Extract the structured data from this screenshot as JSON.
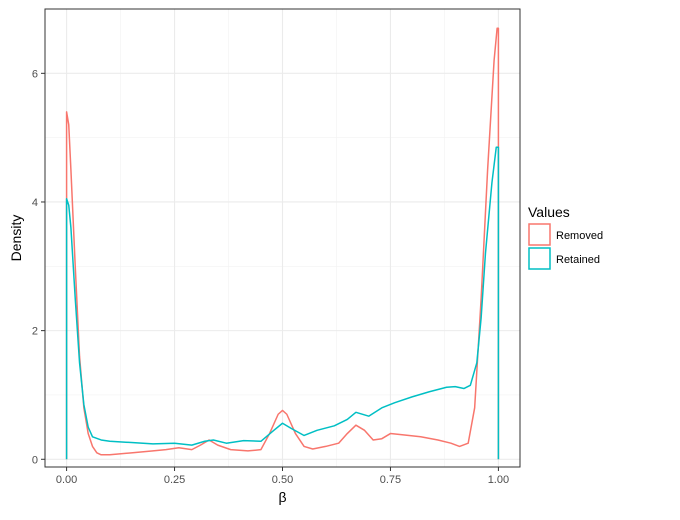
{
  "chart_data": {
    "type": "line",
    "subtype": "density",
    "title": "",
    "xlabel": "β",
    "ylabel": "Density",
    "xlim": [
      -0.05,
      1.05
    ],
    "ylim": [
      -0.12,
      7.0
    ],
    "x_ticks": [
      0.0,
      0.25,
      0.5,
      0.75,
      1.0
    ],
    "x_tick_labels": [
      "0.00",
      "0.25",
      "0.50",
      "0.75",
      "1.00"
    ],
    "y_ticks": [
      0,
      2,
      4,
      6
    ],
    "y_tick_labels": [
      "0",
      "2",
      "4",
      "6"
    ],
    "grid": true,
    "legend": {
      "title": "Values",
      "position": "right",
      "entries": [
        "Removed",
        "Retained"
      ]
    },
    "series": [
      {
        "name": "Removed",
        "color": "#F8766D",
        "points": [
          [
            0.0,
            0.0
          ],
          [
            0.0,
            5.4
          ],
          [
            0.005,
            5.2
          ],
          [
            0.01,
            4.5
          ],
          [
            0.02,
            3.0
          ],
          [
            0.03,
            1.6
          ],
          [
            0.04,
            0.8
          ],
          [
            0.05,
            0.4
          ],
          [
            0.06,
            0.2
          ],
          [
            0.07,
            0.1
          ],
          [
            0.08,
            0.07
          ],
          [
            0.1,
            0.07
          ],
          [
            0.15,
            0.1
          ],
          [
            0.2,
            0.13
          ],
          [
            0.23,
            0.15
          ],
          [
            0.26,
            0.18
          ],
          [
            0.29,
            0.15
          ],
          [
            0.31,
            0.22
          ],
          [
            0.33,
            0.3
          ],
          [
            0.35,
            0.22
          ],
          [
            0.38,
            0.15
          ],
          [
            0.42,
            0.13
          ],
          [
            0.45,
            0.15
          ],
          [
            0.47,
            0.4
          ],
          [
            0.49,
            0.7
          ],
          [
            0.5,
            0.76
          ],
          [
            0.51,
            0.7
          ],
          [
            0.53,
            0.4
          ],
          [
            0.55,
            0.2
          ],
          [
            0.57,
            0.16
          ],
          [
            0.6,
            0.2
          ],
          [
            0.63,
            0.25
          ],
          [
            0.65,
            0.4
          ],
          [
            0.67,
            0.53
          ],
          [
            0.69,
            0.45
          ],
          [
            0.71,
            0.3
          ],
          [
            0.73,
            0.32
          ],
          [
            0.75,
            0.4
          ],
          [
            0.78,
            0.38
          ],
          [
            0.82,
            0.35
          ],
          [
            0.86,
            0.3
          ],
          [
            0.89,
            0.25
          ],
          [
            0.91,
            0.2
          ],
          [
            0.93,
            0.25
          ],
          [
            0.945,
            0.8
          ],
          [
            0.96,
            2.5
          ],
          [
            0.975,
            4.5
          ],
          [
            0.99,
            6.2
          ],
          [
            0.997,
            6.7
          ],
          [
            1.0,
            6.7
          ],
          [
            1.0,
            0.0
          ]
        ]
      },
      {
        "name": "Retained",
        "color": "#00BFC4",
        "points": [
          [
            0.0,
            0.0
          ],
          [
            0.0,
            4.05
          ],
          [
            0.005,
            3.95
          ],
          [
            0.01,
            3.6
          ],
          [
            0.02,
            2.5
          ],
          [
            0.03,
            1.5
          ],
          [
            0.04,
            0.85
          ],
          [
            0.05,
            0.5
          ],
          [
            0.06,
            0.35
          ],
          [
            0.08,
            0.3
          ],
          [
            0.1,
            0.28
          ],
          [
            0.15,
            0.26
          ],
          [
            0.2,
            0.24
          ],
          [
            0.25,
            0.25
          ],
          [
            0.29,
            0.22
          ],
          [
            0.32,
            0.28
          ],
          [
            0.34,
            0.3
          ],
          [
            0.37,
            0.25
          ],
          [
            0.41,
            0.29
          ],
          [
            0.45,
            0.28
          ],
          [
            0.48,
            0.45
          ],
          [
            0.5,
            0.56
          ],
          [
            0.52,
            0.48
          ],
          [
            0.55,
            0.37
          ],
          [
            0.58,
            0.45
          ],
          [
            0.62,
            0.52
          ],
          [
            0.65,
            0.62
          ],
          [
            0.67,
            0.73
          ],
          [
            0.7,
            0.67
          ],
          [
            0.73,
            0.8
          ],
          [
            0.76,
            0.88
          ],
          [
            0.8,
            0.97
          ],
          [
            0.84,
            1.05
          ],
          [
            0.88,
            1.12
          ],
          [
            0.9,
            1.13
          ],
          [
            0.92,
            1.1
          ],
          [
            0.935,
            1.15
          ],
          [
            0.95,
            1.5
          ],
          [
            0.96,
            2.2
          ],
          [
            0.97,
            3.2
          ],
          [
            0.985,
            4.3
          ],
          [
            0.995,
            4.85
          ],
          [
            1.0,
            4.85
          ],
          [
            1.0,
            0.0
          ]
        ]
      }
    ]
  }
}
